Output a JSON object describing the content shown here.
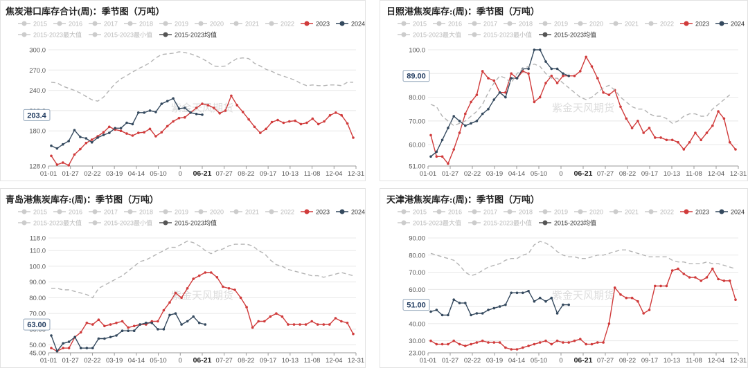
{
  "colors": {
    "y2023": "#d03b3b",
    "y2024": "#34495e",
    "avg": "#b4b4b4",
    "legend_inactive": "#cccccc",
    "axis_text": "#555555",
    "grid": "#e8e8e8",
    "marker_box_border": "#8fa3b8"
  },
  "legend": {
    "items": [
      "2015",
      "2016",
      "2017",
      "2018",
      "2019",
      "2020",
      "2021",
      "2022",
      "2023",
      "2024",
      "2015-2023最大值",
      "2015-2023最小值",
      "2015-2023均值"
    ],
    "active": [
      "2023",
      "2024",
      "2015-2023均值"
    ]
  },
  "x_ticks": [
    "01-01",
    "01-27",
    "02-22",
    "03-19",
    "04-14",
    "05-10",
    "0",
    "06-21",
    "07-27",
    "08-22",
    "09-17",
    "10-13",
    "11-08",
    "12-04",
    "12-31"
  ],
  "highlight_tick": "06-21",
  "watermark": "紫金天风期货",
  "chart_data": [
    {
      "type": "line",
      "title": "焦炭港口库存合计(周)：季节图（万吨）",
      "ylim": [
        128,
        300
      ],
      "y_ticks": [
        "300.0",
        "270.0",
        "240.0",
        "210.0",
        "180.0",
        "128.0"
      ],
      "y_tick_values": [
        300,
        270,
        240,
        210,
        180,
        128
      ],
      "current_marker": "203.4",
      "current_value": 203.4,
      "series": [
        {
          "name": "2023",
          "values": [
            143,
            130,
            133,
            129,
            145,
            153,
            162,
            167,
            172,
            178,
            186,
            182,
            180,
            176,
            173,
            177,
            178,
            183,
            172,
            178,
            187,
            194,
            199,
            200,
            207,
            214,
            220,
            218,
            214,
            206,
            210,
            232,
            218,
            208,
            197,
            186,
            177,
            183,
            193,
            196,
            192,
            194,
            195,
            190,
            192,
            198,
            190,
            194,
            203,
            207,
            203,
            191,
            170
          ]
        },
        {
          "name": "2024",
          "values": [
            158,
            154,
            160,
            165,
            181,
            171,
            169,
            163,
            170,
            174,
            177,
            184,
            184,
            192,
            190,
            207,
            207,
            210,
            208,
            220,
            224,
            228,
            213,
            214,
            207,
            205,
            204
          ]
        },
        {
          "name": "2015-2023均值",
          "values": [
            252,
            251,
            246,
            243,
            240,
            236,
            231,
            226,
            224,
            230,
            240,
            250,
            257,
            262,
            267,
            272,
            276,
            281,
            288,
            293,
            294,
            295,
            297,
            296,
            294,
            291,
            287,
            282,
            276,
            275,
            276,
            282,
            287,
            288,
            287,
            280,
            276,
            271,
            268,
            264,
            261,
            258,
            255,
            250,
            247,
            248,
            247,
            247,
            248,
            248,
            247,
            252,
            252
          ]
        }
      ]
    },
    {
      "type": "line",
      "title": "日照港焦炭库存:(周)：季节图（万吨）",
      "ylim": [
        51,
        100
      ],
      "y_ticks": [
        "100.0",
        "90.00",
        "80.00",
        "70.00",
        "60.00",
        "51.00"
      ],
      "y_tick_values": [
        100,
        90,
        80,
        70,
        60,
        51
      ],
      "current_marker": "89.00",
      "current_value": 89,
      "series": [
        {
          "name": "2023",
          "values": [
            64,
            55,
            55,
            52,
            58,
            65,
            73,
            78,
            81,
            91,
            88,
            87,
            82,
            82,
            90,
            88,
            91,
            90,
            78,
            80,
            86,
            89,
            86,
            89,
            89,
            89,
            91,
            97,
            93,
            88,
            82,
            81,
            83,
            76,
            71,
            67,
            70,
            65,
            67,
            63,
            63,
            62,
            62,
            61,
            58,
            61,
            65,
            62,
            65,
            68,
            74,
            71,
            61,
            58
          ]
        },
        {
          "name": "2024",
          "values": [
            55,
            57,
            62,
            67,
            72,
            70,
            68,
            69,
            70,
            73,
            75,
            79,
            82,
            80,
            88,
            88,
            92,
            92,
            100,
            100,
            95,
            92,
            92,
            90,
            89
          ]
        },
        {
          "name": "2015-2023均值",
          "values": [
            77,
            76,
            72,
            70,
            68,
            69,
            70,
            72,
            74,
            77,
            82,
            86,
            89,
            88,
            86,
            90,
            92,
            93,
            94,
            93,
            90,
            88,
            88,
            86,
            84,
            82,
            80,
            79,
            80,
            82,
            84,
            85,
            83,
            80,
            78,
            76,
            75,
            75,
            73,
            72,
            72,
            71,
            69,
            70,
            72,
            73,
            73,
            72,
            72,
            75,
            77,
            79,
            81
          ]
        }
      ]
    },
    {
      "type": "line",
      "title": "青岛港焦炭库存:(周)：季节图（万吨）",
      "ylim": [
        45,
        118
      ],
      "y_ticks": [
        "118.0",
        "110.0",
        "100.0",
        "90.00",
        "80.00",
        "70.00",
        "60.00",
        "50.00",
        "45.00"
      ],
      "y_tick_values": [
        118,
        110,
        100,
        90,
        80,
        70,
        60,
        50,
        45
      ],
      "current_marker": "63.00",
      "current_value": 63,
      "series": [
        {
          "name": "2023",
          "values": [
            48,
            46,
            48,
            48,
            55,
            58,
            64,
            63,
            66,
            62,
            63,
            64,
            65,
            61,
            62,
            63,
            63,
            65,
            65,
            72,
            77,
            83,
            80,
            86,
            92,
            94,
            96,
            96,
            93,
            87,
            86,
            85,
            80,
            74,
            61,
            65,
            65,
            68,
            70,
            68,
            63,
            63,
            63,
            63,
            65,
            63,
            63,
            63,
            67,
            65,
            64,
            57
          ]
        },
        {
          "name": "2024",
          "values": [
            56,
            46,
            51,
            52,
            55,
            48,
            48,
            48,
            54,
            54,
            55,
            56,
            59,
            59,
            59,
            63,
            64,
            64,
            60,
            60,
            69,
            70,
            63,
            65,
            68,
            64,
            63
          ]
        },
        {
          "name": "2015-2023均值",
          "values": [
            86,
            86,
            85,
            85,
            84,
            83,
            82,
            80,
            86,
            88,
            90,
            92,
            94,
            97,
            100,
            103,
            104,
            106,
            108,
            110,
            112,
            112,
            114,
            116,
            115,
            113,
            110,
            108,
            110,
            111,
            113,
            114,
            114,
            114,
            113,
            110,
            108,
            104,
            101,
            100,
            98,
            97,
            96,
            95,
            94,
            94,
            93,
            94,
            95,
            96,
            95,
            94
          ]
        }
      ]
    },
    {
      "type": "line",
      "title": "天津港焦炭库存:(周)：季节图（万吨）",
      "ylim": [
        23,
        90
      ],
      "y_ticks": [
        "90.00",
        "80.00",
        "70.00",
        "60.00",
        "50.00",
        "40.00",
        "30.00",
        "23.00"
      ],
      "y_tick_values": [
        90,
        80,
        70,
        60,
        50,
        40,
        30,
        23
      ],
      "current_marker": "51.00",
      "current_value": 51,
      "series": [
        {
          "name": "2023",
          "values": [
            30,
            28,
            28,
            28,
            30,
            28,
            27,
            28,
            29,
            30,
            29,
            29,
            29,
            26,
            25,
            25,
            26,
            27,
            28,
            29,
            30,
            28,
            30,
            29,
            29,
            30,
            31,
            28,
            28,
            29,
            29,
            40,
            61,
            57,
            55,
            55,
            53,
            46,
            48,
            62,
            62,
            62,
            71,
            72,
            69,
            67,
            67,
            65,
            67,
            72,
            66,
            65,
            65,
            54
          ]
        },
        {
          "name": "2024",
          "values": [
            47,
            48,
            45,
            45,
            54,
            52,
            52,
            45,
            46,
            46,
            48,
            49,
            50,
            51,
            58,
            58,
            58,
            59,
            53,
            55,
            53,
            55,
            46,
            51,
            51
          ]
        },
        {
          "name": "2015-2023均值",
          "values": [
            81,
            80,
            79,
            78,
            77,
            74,
            70,
            68,
            69,
            71,
            73,
            74,
            75,
            77,
            78,
            78,
            80,
            81,
            86,
            88,
            87,
            85,
            82,
            80,
            79,
            79,
            78,
            78,
            79,
            80,
            80,
            81,
            82,
            83,
            83,
            82,
            81,
            80,
            79,
            79,
            79,
            79,
            77,
            76,
            76,
            75,
            75,
            75,
            76,
            75,
            75,
            74,
            73,
            72
          ]
        }
      ]
    }
  ]
}
